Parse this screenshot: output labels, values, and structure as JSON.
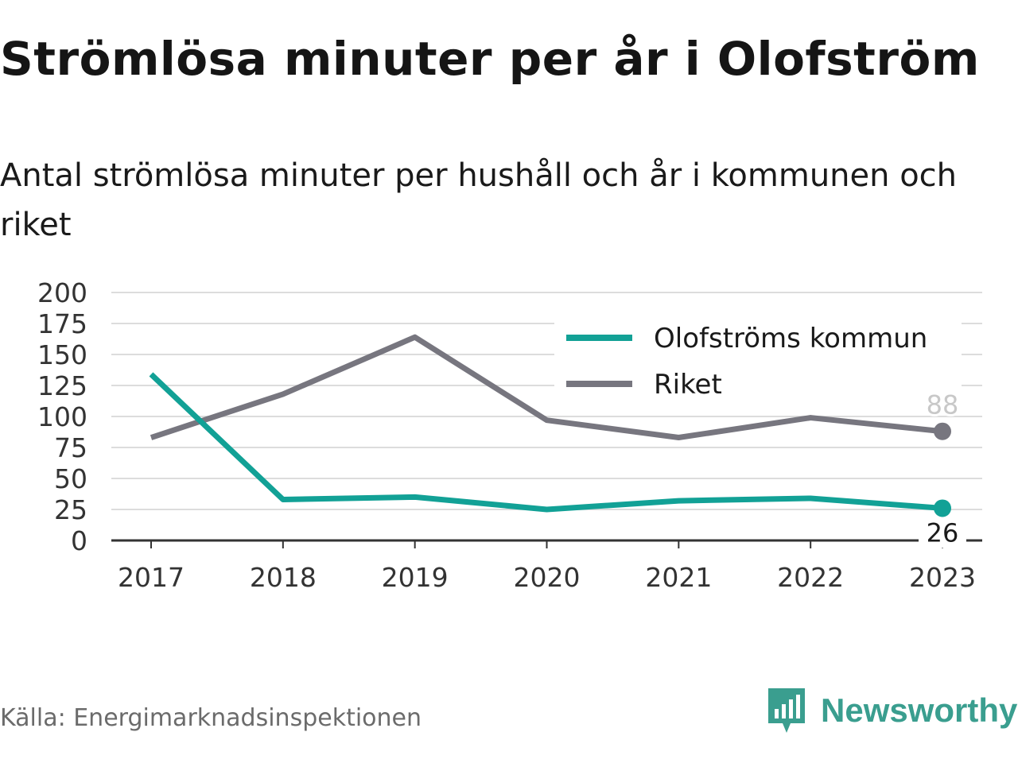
{
  "title": "Strömlösa minuter per år i Olofström",
  "subtitle": "Antal strömlösa minuter per hushåll och år i kommunen och riket",
  "source": "Källa: Energimarknadsinspektionen",
  "brand": {
    "name": "Newsworthy",
    "icon": "newsworthy-logo-icon",
    "color": "#3a9e8f"
  },
  "chart_data": {
    "type": "line",
    "x": [
      "2017",
      "2018",
      "2019",
      "2020",
      "2021",
      "2022",
      "2023"
    ],
    "ylim": [
      0,
      200
    ],
    "yticks": [
      0,
      25,
      50,
      75,
      100,
      125,
      150,
      175,
      200
    ],
    "grid": true,
    "legend_position": "top-right",
    "series": [
      {
        "name": "Olofströms kommun",
        "color": "#12a196",
        "values": [
          134,
          33,
          35,
          25,
          32,
          34,
          26
        ],
        "end_label": "26"
      },
      {
        "name": "Riket",
        "color": "#77767f",
        "values": [
          83,
          118,
          164,
          97,
          83,
          99,
          88
        ],
        "end_label": "88"
      }
    ]
  }
}
